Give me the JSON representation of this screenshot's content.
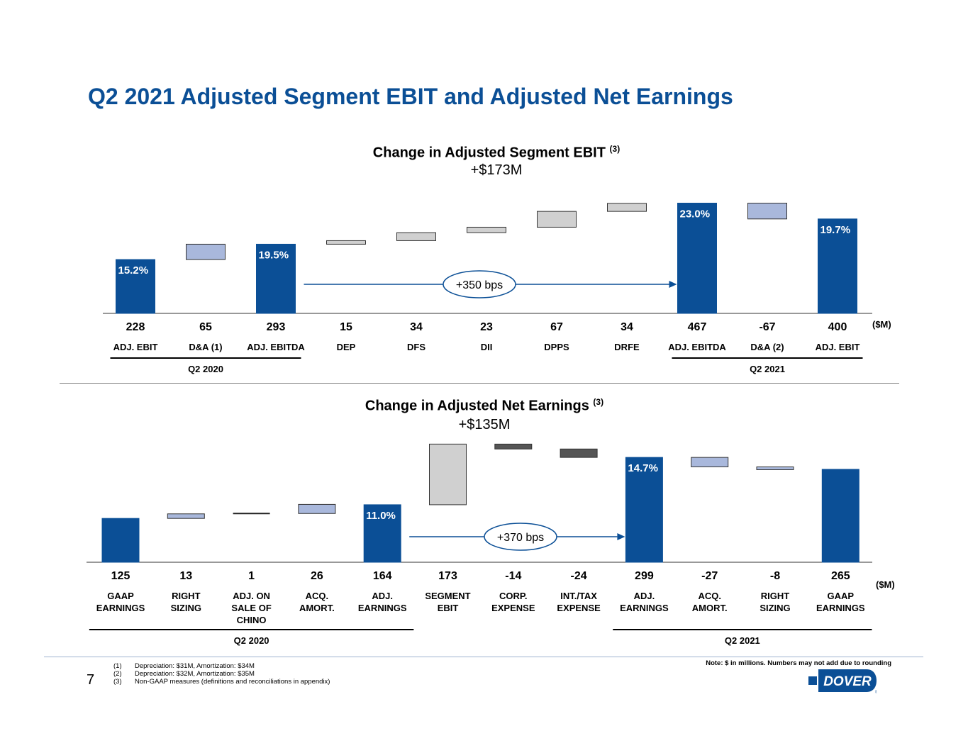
{
  "page_title": "Q2 2021 Adjusted Segment EBIT and Adjusted Net Earnings",
  "page_number": "7",
  "note": "Note: $ in millions. Numbers may not add due to rounding",
  "footnotes": [
    {
      "num": "(1)",
      "text": "Depreciation: $31M, Amortization: $34M"
    },
    {
      "num": "(2)",
      "text": "Depreciation: $32M, Amortization: $35M"
    },
    {
      "num": "(3)",
      "text": "Non-GAAP measures (definitions and reconciliations in appendix)"
    }
  ],
  "logo_text": "DOVER",
  "colors": {
    "total": "#0b4f96",
    "da": "#a9b8dc",
    "segment": "#d0d0d0",
    "corp": "#555555",
    "title": "#0b4f96"
  },
  "chart_data": [
    {
      "type": "waterfall",
      "title": "Change in Adjusted Segment EBIT",
      "title_sup": "(3)",
      "subtitle": "+$173M",
      "units": "($M)",
      "callout": "+350 bps",
      "categories": [
        "ADJ. EBIT",
        "D&A (1)",
        "ADJ. EBITDA",
        "DEP",
        "DFS",
        "DII",
        "DPPS",
        "DRFE",
        "ADJ. EBITDA",
        "D&A (2)",
        "ADJ. EBIT"
      ],
      "value_labels": [
        "228",
        "65",
        "293",
        "15",
        "34",
        "23",
        "67",
        "34",
        "467",
        "-67",
        "400"
      ],
      "values": [
        228,
        65,
        293,
        15,
        34,
        23,
        67,
        34,
        467,
        -67,
        400
      ],
      "kinds": [
        "total",
        "da",
        "total",
        "segment",
        "segment",
        "segment",
        "segment",
        "segment",
        "total",
        "da",
        "total"
      ],
      "margins": [
        "15.2%",
        "",
        "19.5%",
        "",
        "",
        "",
        "",
        "",
        "23.0%",
        "",
        "19.7%"
      ],
      "groups": [
        {
          "label": "Q2 2020",
          "from": 0,
          "to": 2
        },
        {
          "label": "Q2 2021",
          "from": 8,
          "to": 10
        }
      ]
    },
    {
      "type": "waterfall",
      "title": "Change in Adjusted Net Earnings",
      "title_sup": "(3)",
      "subtitle": "+$135M",
      "units": "($M)",
      "callout": "+370 bps",
      "categories": [
        "GAAP EARNINGS",
        "RIGHT SIZING",
        "ADJ. ON SALE OF CHINO",
        "ACQ. AMORT.",
        "ADJ. EARNINGS",
        "SEGMENT EBIT",
        "CORP. EXPENSE",
        "INT./TAX EXPENSE",
        "ADJ. EARNINGS",
        "ACQ. AMORT.",
        "RIGHT SIZING",
        "GAAP EARNINGS"
      ],
      "category_lines": [
        [
          "GAAP",
          "EARNINGS"
        ],
        [
          "RIGHT",
          "SIZING"
        ],
        [
          "ADJ. ON",
          "SALE OF",
          "CHINO"
        ],
        [
          "ACQ.",
          "AMORT."
        ],
        [
          "ADJ.",
          "EARNINGS"
        ],
        [
          "SEGMENT",
          "EBIT"
        ],
        [
          "CORP.",
          "EXPENSE"
        ],
        [
          "INT./TAX",
          "EXPENSE"
        ],
        [
          "ADJ.",
          "EARNINGS"
        ],
        [
          "ACQ.",
          "AMORT."
        ],
        [
          "RIGHT",
          "SIZING"
        ],
        [
          "GAAP",
          "EARNINGS"
        ]
      ],
      "value_labels": [
        "125",
        "13",
        "1",
        "26",
        "164",
        "173",
        "-14",
        "-24",
        "299",
        "-27",
        "-8",
        "265"
      ],
      "values": [
        125,
        13,
        1,
        26,
        164,
        173,
        -14,
        -24,
        299,
        -27,
        -8,
        265
      ],
      "kinds": [
        "total",
        "da",
        "line",
        "da",
        "total",
        "segment",
        "corp",
        "corp",
        "total",
        "da",
        "da",
        "total"
      ],
      "margins": [
        "",
        "",
        "",
        "",
        "11.0%",
        "",
        "",
        "",
        "14.7%",
        "",
        "",
        ""
      ],
      "groups": [
        {
          "label": "Q2 2020",
          "from": 0,
          "to": 4
        },
        {
          "label": "Q2 2021",
          "from": 8,
          "to": 11
        }
      ]
    }
  ]
}
